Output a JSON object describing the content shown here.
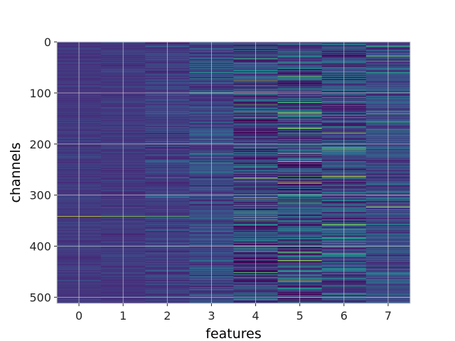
{
  "chart_data": {
    "type": "heatmap",
    "title": "",
    "xlabel": "features",
    "ylabel": "channels",
    "x_categories": [
      "0",
      "1",
      "2",
      "3",
      "4",
      "5",
      "6",
      "7"
    ],
    "x_range": [
      -0.5,
      7.5
    ],
    "y_range": [
      512,
      0
    ],
    "y_inverted": true,
    "y_ticks": [
      "0",
      "100",
      "200",
      "300",
      "400",
      "500"
    ],
    "n_rows": 512,
    "n_cols": 8,
    "colormap": "viridis",
    "grid": true,
    "grid_color": "#d9d9d9",
    "column_variability": [
      0.05,
      0.06,
      0.1,
      0.16,
      0.28,
      0.32,
      0.26,
      0.18
    ],
    "column_base_level": [
      0.17,
      0.17,
      0.19,
      0.22,
      0.2,
      0.22,
      0.24,
      0.24
    ],
    "bright_rows": [
      {
        "column": 0,
        "channel": 341,
        "value": 0.95
      },
      {
        "column": 1,
        "channel": 341,
        "value": 0.85
      },
      {
        "column": 2,
        "channel": 341,
        "value": 0.75
      },
      {
        "column": 4,
        "channel": 76,
        "value": 0.9
      },
      {
        "column": 4,
        "channel": 266,
        "value": 0.98
      },
      {
        "column": 5,
        "channel": 137,
        "value": 0.97
      },
      {
        "column": 5,
        "channel": 234,
        "value": 0.92
      },
      {
        "column": 6,
        "channel": 263,
        "value": 0.95
      },
      {
        "column": 6,
        "channel": 210,
        "value": 0.8
      },
      {
        "column": 7,
        "channel": 27,
        "value": 0.9
      },
      {
        "column": 7,
        "channel": 140,
        "value": 0.8
      },
      {
        "column": 7,
        "channel": 323,
        "value": 1.0
      }
    ],
    "dark_rows": [
      {
        "column": 5,
        "channel": 264,
        "value": 0.0
      },
      {
        "column": 4,
        "channel": 236,
        "value": 0.02
      }
    ]
  }
}
